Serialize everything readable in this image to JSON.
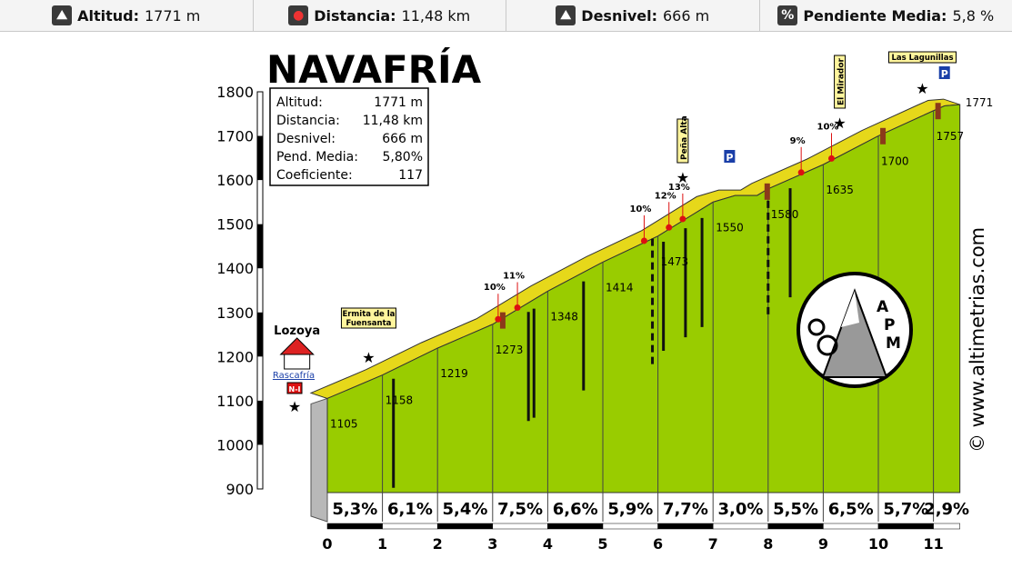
{
  "header": {
    "items": [
      {
        "icon": "mountain-icon",
        "label": "Altitud:",
        "value": "1771 m"
      },
      {
        "icon": "route-icon",
        "label": "Distancia:",
        "value": "11,48 km"
      },
      {
        "icon": "mountain-icon",
        "label": "Desnivel:",
        "value": "666 m"
      },
      {
        "icon": "percent-icon",
        "label": "Pendiente Media:",
        "value": "5,8 %"
      }
    ]
  },
  "chart_data": {
    "type": "area",
    "title": "NAVAFRÍA",
    "watermark": "© www.altimetrias.com",
    "xlim": [
      0,
      11.48
    ],
    "ylim": [
      900,
      1800
    ],
    "x_ticks": [
      "0",
      "1",
      "2",
      "3",
      "4",
      "5",
      "6",
      "7",
      "8",
      "9",
      "10",
      "11"
    ],
    "y_ticks": [
      "900",
      "1000",
      "1100",
      "1200",
      "1300",
      "1400",
      "1500",
      "1600",
      "1700",
      "1800"
    ],
    "profile": {
      "x": [
        0,
        1,
        2,
        3,
        4,
        5,
        6,
        7,
        7.4,
        7.8,
        8,
        9,
        10,
        11,
        11.2,
        11.48
      ],
      "y": [
        1105,
        1158,
        1219,
        1273,
        1348,
        1414,
        1473,
        1550,
        1565,
        1565,
        1580,
        1635,
        1700,
        1757,
        1768,
        1771
      ]
    },
    "km_altitudes": [
      {
        "x": 0,
        "label": "1105"
      },
      {
        "x": 1,
        "label": "1158"
      },
      {
        "x": 2,
        "label": "1219"
      },
      {
        "x": 3,
        "label": "1273"
      },
      {
        "x": 4,
        "label": "1348"
      },
      {
        "x": 5,
        "label": "1414"
      },
      {
        "x": 6,
        "label": "1473"
      },
      {
        "x": 7,
        "label": "1550"
      },
      {
        "x": 8,
        "label": "1580"
      },
      {
        "x": 9,
        "label": "1635"
      },
      {
        "x": 10,
        "label": "1700"
      },
      {
        "x": 11,
        "label": "1757"
      },
      {
        "x": 11.48,
        "label": "1771"
      }
    ],
    "segment_gradients": [
      "5,3%",
      "6,1%",
      "5,4%",
      "7,5%",
      "6,6%",
      "5,9%",
      "7,7%",
      "3,0%",
      "5,5%",
      "6,5%",
      "5,7%",
      "2,9%"
    ],
    "point_grades": [
      {
        "x": 3.1,
        "label": "10%"
      },
      {
        "x": 3.45,
        "label": "11%"
      },
      {
        "x": 5.75,
        "label": "10%"
      },
      {
        "x": 6.2,
        "label": "12%"
      },
      {
        "x": 6.45,
        "label": "13%"
      },
      {
        "x": 8.6,
        "label": "9%"
      },
      {
        "x": 9.15,
        "label": "10%"
      }
    ],
    "places": [
      {
        "x": -0.55,
        "label": "Lozoya"
      },
      {
        "x": 0.75,
        "label": "Ermita de la Fuensanta"
      },
      {
        "x": 6.45,
        "label": "Peña Alta"
      },
      {
        "x": 9.3,
        "label": "El Mirador"
      },
      {
        "x": 10.8,
        "label": "Las Lagunillas"
      }
    ],
    "road_signs": [
      "Rascafría",
      "N-I"
    ],
    "info_box": {
      "rows": [
        {
          "label": "Altitud:",
          "value": "1771 m"
        },
        {
          "label": "Distancia:",
          "value": "11,48 km"
        },
        {
          "label": "Desnivel:",
          "value": "666 m"
        },
        {
          "label": "Pend. Media:",
          "value": "5,80%"
        },
        {
          "label": "Coeficiente:",
          "value": "117"
        }
      ]
    },
    "logo": {
      "letters": "APM"
    },
    "colors": {
      "fill": "#99cc00",
      "road": "#e6d81a",
      "side": "#b8b8b8"
    }
  }
}
